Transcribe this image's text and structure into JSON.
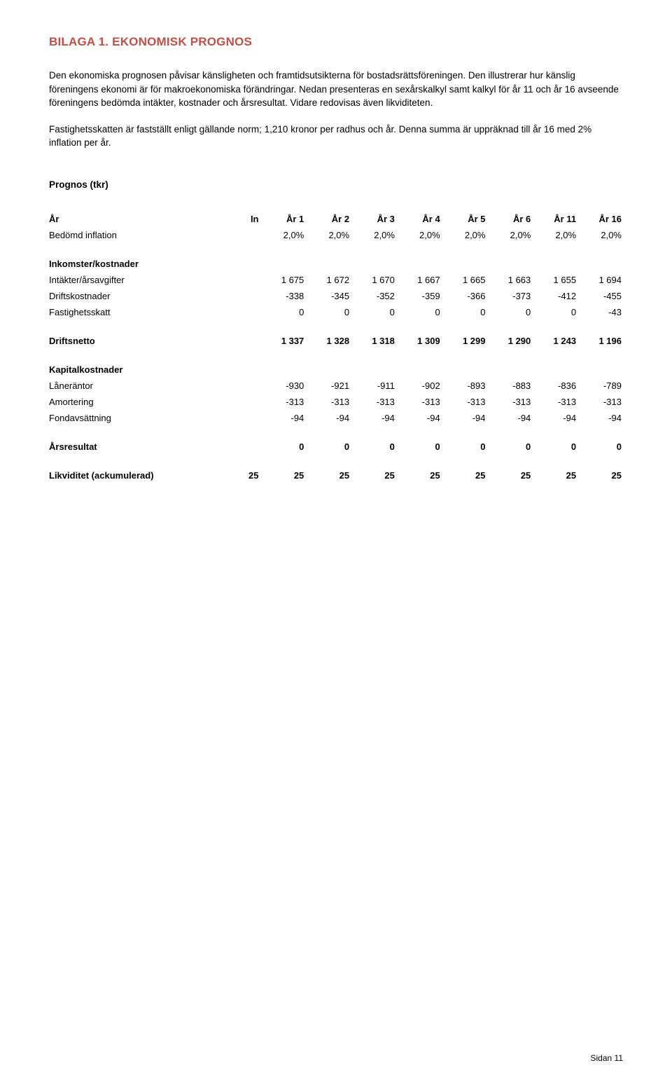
{
  "title": "BILAGA 1. EKONOMISK PROGNOS",
  "para1": "Den ekonomiska prognosen påvisar känsligheten och framtidsutsikterna för bostadsrättsföreningen. Den illustrerar hur känslig föreningens ekonomi är för makroekonomiska förändringar. Nedan presenteras en sexårskalkyl samt kalkyl för år 11 och år 16 avseende föreningens bedömda intäkter, kostnader och årsresultat. Vidare redovisas även likviditeten.",
  "para2": "Fastighetsskatten är fastställt enligt gällande norm; 1,210 kronor per radhus och år. Denna summa är uppräknad till år 16 med 2% inflation per år.",
  "subhead": "Prognos (tkr)",
  "colHeaders": [
    "År",
    "In",
    "År 1",
    "År 2",
    "År 3",
    "År 4",
    "År 5",
    "År 6",
    "År 11",
    "År 16"
  ],
  "rows": {
    "inflation": {
      "label": "Bedömd inflation",
      "vals": [
        "",
        "2,0%",
        "2,0%",
        "2,0%",
        "2,0%",
        "2,0%",
        "2,0%",
        "2,0%",
        "2,0%"
      ]
    },
    "sec_ink": {
      "label": "Inkomster/kostnader"
    },
    "intakter": {
      "label": "Intäkter/årsavgifter",
      "vals": [
        "",
        "1 675",
        "1 672",
        "1 670",
        "1 667",
        "1 665",
        "1 663",
        "1 655",
        "1 694"
      ]
    },
    "drifts": {
      "label": "Driftskostnader",
      "vals": [
        "",
        "-338",
        "-345",
        "-352",
        "-359",
        "-366",
        "-373",
        "-412",
        "-455"
      ]
    },
    "fskatt": {
      "label": "Fastighetsskatt",
      "vals": [
        "",
        "0",
        "0",
        "0",
        "0",
        "0",
        "0",
        "0",
        "-43"
      ]
    },
    "driftsnetto": {
      "label": "Driftsnetto",
      "vals": [
        "",
        "1 337",
        "1 328",
        "1 318",
        "1 309",
        "1 299",
        "1 290",
        "1 243",
        "1 196"
      ]
    },
    "sec_kap": {
      "label": "Kapitalkostnader"
    },
    "lanerantor": {
      "label": "Låneräntor",
      "vals": [
        "",
        "-930",
        "-921",
        "-911",
        "-902",
        "-893",
        "-883",
        "-836",
        "-789"
      ]
    },
    "amortering": {
      "label": "Amortering",
      "vals": [
        "",
        "-313",
        "-313",
        "-313",
        "-313",
        "-313",
        "-313",
        "-313",
        "-313"
      ]
    },
    "fondav": {
      "label": "Fondavsättning",
      "vals": [
        "",
        "-94",
        "-94",
        "-94",
        "-94",
        "-94",
        "-94",
        "-94",
        "-94"
      ]
    },
    "arsresultat": {
      "label": "Årsresultat",
      "vals": [
        "",
        "0",
        "0",
        "0",
        "0",
        "0",
        "0",
        "0",
        "0"
      ]
    },
    "likviditet": {
      "label": "Likviditet (ackumulerad)",
      "vals": [
        "25",
        "25",
        "25",
        "25",
        "25",
        "25",
        "25",
        "25",
        "25"
      ]
    }
  },
  "footer": "Sidan 11"
}
